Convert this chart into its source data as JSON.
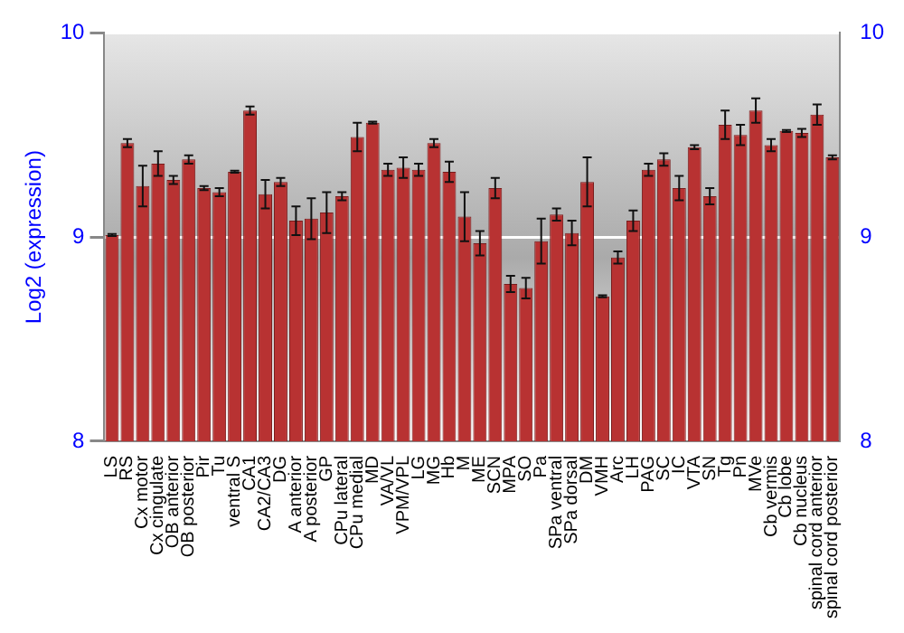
{
  "chart_data": {
    "type": "bar",
    "ylabel": "Log2 (expression)",
    "categories": [
      "LS",
      "RS",
      "Cx motor",
      "Cx cingulate",
      "OB anterior",
      "OB posterior",
      "Pir",
      "Tu",
      "ventral S",
      "CA1",
      "CA2/CA3",
      "DG",
      "A anterior",
      "A posterior",
      "GP",
      "CPu lateral",
      "CPu medial",
      "MD",
      "VA/VL",
      "VPM/VPL",
      "LG",
      "MG",
      "Hb",
      "M",
      "ME",
      "SCN",
      "MPA",
      "SO",
      "Pa",
      "SPa ventral",
      "SPa dorsal",
      "DM",
      "VMH",
      "Arc",
      "LH",
      "PAG",
      "SC",
      "IC",
      "VTA",
      "SN",
      "Tg",
      "Pn",
      "MVe",
      "Cb vermis",
      "Cb lobe",
      "Cb nucleus",
      "spinal cord anterior",
      "spinal cord posterior"
    ],
    "values": [
      9.01,
      9.46,
      9.25,
      9.36,
      9.28,
      9.38,
      9.24,
      9.22,
      9.32,
      9.62,
      9.21,
      9.27,
      9.08,
      9.09,
      9.12,
      9.2,
      9.49,
      9.56,
      9.33,
      9.34,
      9.33,
      9.46,
      9.32,
      9.1,
      8.97,
      9.24,
      8.77,
      8.75,
      8.98,
      9.11,
      9.02,
      9.27,
      8.71,
      8.9,
      9.08,
      9.33,
      9.38,
      9.24,
      9.44,
      9.2,
      9.55,
      9.5,
      9.62,
      9.45,
      9.52,
      9.51,
      9.6,
      9.39
    ],
    "errors": [
      0.005,
      0.02,
      0.1,
      0.06,
      0.02,
      0.02,
      0.01,
      0.02,
      0.005,
      0.02,
      0.07,
      0.02,
      0.07,
      0.1,
      0.1,
      0.02,
      0.07,
      0.005,
      0.03,
      0.05,
      0.03,
      0.02,
      0.05,
      0.12,
      0.06,
      0.05,
      0.04,
      0.05,
      0.11,
      0.03,
      0.06,
      0.12,
      0.005,
      0.03,
      0.05,
      0.03,
      0.03,
      0.06,
      0.01,
      0.04,
      0.07,
      0.05,
      0.06,
      0.03,
      0.005,
      0.02,
      0.05,
      0.01
    ],
    "color": "#b83232",
    "ylim": [
      8,
      10
    ],
    "yticks": [
      8,
      9,
      10
    ],
    "y2lim": [
      8,
      10
    ],
    "y2ticks": [
      8,
      9,
      10
    ],
    "grid": "y",
    "legend": false
  }
}
